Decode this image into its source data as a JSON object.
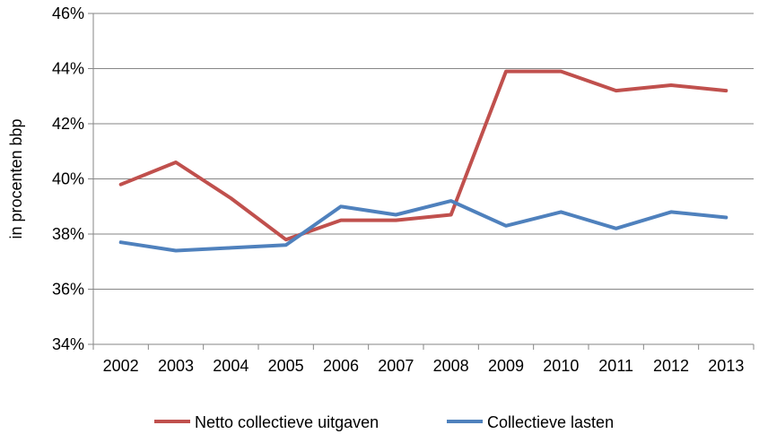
{
  "chart_data": {
    "type": "line",
    "title": "",
    "xlabel": "",
    "ylabel": "in procenten bbp",
    "ylim": [
      34,
      46
    ],
    "y_tick_step": 2,
    "y_tick_suffix": "%",
    "grid": "horizontal",
    "legend": "bottom",
    "x": [
      "2002",
      "2003",
      "2004",
      "2005",
      "2006",
      "2007",
      "2008",
      "2009",
      "2010",
      "2011",
      "2012",
      "2013"
    ],
    "series": [
      {
        "name": "Netto collectieve uitgaven",
        "color": "#c0504d",
        "values": [
          39.8,
          40.6,
          39.3,
          37.8,
          38.5,
          38.5,
          38.7,
          43.9,
          43.9,
          43.2,
          43.4,
          43.2
        ]
      },
      {
        "name": "Collectieve lasten",
        "color": "#4f81bd",
        "values": [
          37.7,
          37.4,
          37.5,
          37.6,
          39.0,
          38.7,
          39.2,
          38.3,
          38.8,
          38.2,
          38.8,
          38.6
        ]
      }
    ]
  }
}
